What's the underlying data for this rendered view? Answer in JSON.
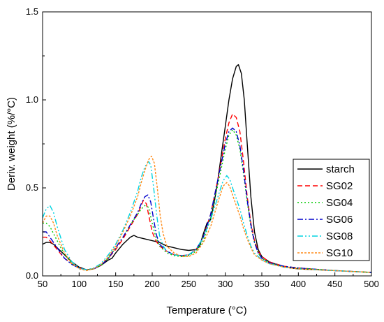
{
  "chart_data": {
    "type": "line",
    "title": "",
    "xlabel": "Temperature (°C)",
    "ylabel": "Deriv. weight (%/°C)",
    "xlim": [
      50,
      500
    ],
    "ylim": [
      0,
      1.5
    ],
    "x_ticks": [
      50,
      100,
      150,
      200,
      250,
      300,
      350,
      400,
      450,
      500
    ],
    "y_ticks": [
      0.0,
      0.5,
      1.0,
      1.5
    ],
    "x_tick_labels": [
      "50",
      "100",
      "150",
      "200",
      "250",
      "300",
      "350",
      "400",
      "450",
      "500"
    ],
    "y_tick_labels": [
      "0.0",
      "0.5",
      "1.0",
      "1.5"
    ],
    "grid": false,
    "legend_position": "right",
    "series": [
      {
        "name": "starch",
        "color": "#000000",
        "dash": "solid",
        "points": [
          [
            50,
            0.18
          ],
          [
            55,
            0.19
          ],
          [
            60,
            0.19
          ],
          [
            65,
            0.18
          ],
          [
            70,
            0.16
          ],
          [
            80,
            0.12
          ],
          [
            90,
            0.08
          ],
          [
            100,
            0.05
          ],
          [
            110,
            0.035
          ],
          [
            120,
            0.04
          ],
          [
            130,
            0.06
          ],
          [
            140,
            0.09
          ],
          [
            145,
            0.1
          ],
          [
            150,
            0.13
          ],
          [
            160,
            0.18
          ],
          [
            170,
            0.22
          ],
          [
            175,
            0.23
          ],
          [
            180,
            0.22
          ],
          [
            190,
            0.21
          ],
          [
            200,
            0.2
          ],
          [
            210,
            0.19
          ],
          [
            220,
            0.17
          ],
          [
            230,
            0.16
          ],
          [
            240,
            0.15
          ],
          [
            250,
            0.145
          ],
          [
            260,
            0.15
          ],
          [
            265,
            0.17
          ],
          [
            270,
            0.24
          ],
          [
            275,
            0.3
          ],
          [
            280,
            0.32
          ],
          [
            285,
            0.42
          ],
          [
            290,
            0.55
          ],
          [
            295,
            0.7
          ],
          [
            300,
            0.85
          ],
          [
            305,
            1.0
          ],
          [
            310,
            1.12
          ],
          [
            315,
            1.19
          ],
          [
            318,
            1.2
          ],
          [
            322,
            1.15
          ],
          [
            326,
            1.0
          ],
          [
            330,
            0.75
          ],
          [
            335,
            0.45
          ],
          [
            340,
            0.25
          ],
          [
            345,
            0.15
          ],
          [
            350,
            0.11
          ],
          [
            360,
            0.08
          ],
          [
            380,
            0.05
          ],
          [
            400,
            0.04
          ],
          [
            450,
            0.03
          ],
          [
            500,
            0.02
          ]
        ]
      },
      {
        "name": "SG02",
        "color": "#ff0000",
        "dash": "dashed",
        "points": [
          [
            50,
            0.22
          ],
          [
            55,
            0.22
          ],
          [
            60,
            0.2
          ],
          [
            70,
            0.15
          ],
          [
            80,
            0.1
          ],
          [
            90,
            0.07
          ],
          [
            100,
            0.045
          ],
          [
            110,
            0.035
          ],
          [
            120,
            0.04
          ],
          [
            130,
            0.06
          ],
          [
            140,
            0.1
          ],
          [
            150,
            0.15
          ],
          [
            160,
            0.21
          ],
          [
            170,
            0.28
          ],
          [
            180,
            0.35
          ],
          [
            185,
            0.4
          ],
          [
            188,
            0.43
          ],
          [
            192,
            0.41
          ],
          [
            196,
            0.33
          ],
          [
            200,
            0.25
          ],
          [
            205,
            0.2
          ],
          [
            210,
            0.17
          ],
          [
            220,
            0.14
          ],
          [
            230,
            0.12
          ],
          [
            240,
            0.115
          ],
          [
            250,
            0.12
          ],
          [
            260,
            0.15
          ],
          [
            270,
            0.22
          ],
          [
            280,
            0.35
          ],
          [
            290,
            0.55
          ],
          [
            300,
            0.78
          ],
          [
            305,
            0.87
          ],
          [
            310,
            0.92
          ],
          [
            315,
            0.9
          ],
          [
            320,
            0.82
          ],
          [
            325,
            0.65
          ],
          [
            330,
            0.45
          ],
          [
            335,
            0.3
          ],
          [
            340,
            0.2
          ],
          [
            345,
            0.14
          ],
          [
            350,
            0.11
          ],
          [
            360,
            0.08
          ],
          [
            380,
            0.055
          ],
          [
            400,
            0.045
          ],
          [
            450,
            0.03
          ],
          [
            500,
            0.02
          ]
        ]
      },
      {
        "name": "SG04",
        "color": "#00cc00",
        "dash": "dotted",
        "points": [
          [
            50,
            0.3
          ],
          [
            55,
            0.3
          ],
          [
            60,
            0.28
          ],
          [
            70,
            0.2
          ],
          [
            80,
            0.12
          ],
          [
            90,
            0.07
          ],
          [
            100,
            0.045
          ],
          [
            110,
            0.035
          ],
          [
            120,
            0.04
          ],
          [
            130,
            0.06
          ],
          [
            140,
            0.1
          ],
          [
            150,
            0.16
          ],
          [
            160,
            0.22
          ],
          [
            170,
            0.29
          ],
          [
            180,
            0.35
          ],
          [
            185,
            0.38
          ],
          [
            190,
            0.4
          ],
          [
            195,
            0.39
          ],
          [
            200,
            0.3
          ],
          [
            205,
            0.22
          ],
          [
            210,
            0.17
          ],
          [
            220,
            0.13
          ],
          [
            230,
            0.115
          ],
          [
            240,
            0.11
          ],
          [
            250,
            0.115
          ],
          [
            260,
            0.14
          ],
          [
            270,
            0.2
          ],
          [
            280,
            0.33
          ],
          [
            290,
            0.52
          ],
          [
            300,
            0.72
          ],
          [
            305,
            0.8
          ],
          [
            310,
            0.83
          ],
          [
            315,
            0.8
          ],
          [
            320,
            0.72
          ],
          [
            325,
            0.58
          ],
          [
            330,
            0.42
          ],
          [
            335,
            0.28
          ],
          [
            340,
            0.19
          ],
          [
            345,
            0.13
          ],
          [
            350,
            0.1
          ],
          [
            360,
            0.075
          ],
          [
            380,
            0.055
          ],
          [
            400,
            0.045
          ],
          [
            450,
            0.03
          ],
          [
            500,
            0.02
          ]
        ]
      },
      {
        "name": "SG06",
        "color": "#0000cc",
        "dash": "dashdot",
        "points": [
          [
            50,
            0.25
          ],
          [
            55,
            0.25
          ],
          [
            60,
            0.22
          ],
          [
            70,
            0.16
          ],
          [
            80,
            0.1
          ],
          [
            90,
            0.065
          ],
          [
            100,
            0.045
          ],
          [
            110,
            0.035
          ],
          [
            120,
            0.04
          ],
          [
            130,
            0.06
          ],
          [
            140,
            0.1
          ],
          [
            150,
            0.16
          ],
          [
            160,
            0.22
          ],
          [
            170,
            0.29
          ],
          [
            180,
            0.36
          ],
          [
            185,
            0.41
          ],
          [
            190,
            0.45
          ],
          [
            194,
            0.46
          ],
          [
            198,
            0.42
          ],
          [
            202,
            0.32
          ],
          [
            206,
            0.23
          ],
          [
            210,
            0.18
          ],
          [
            220,
            0.14
          ],
          [
            230,
            0.12
          ],
          [
            240,
            0.115
          ],
          [
            250,
            0.12
          ],
          [
            260,
            0.15
          ],
          [
            270,
            0.22
          ],
          [
            280,
            0.35
          ],
          [
            290,
            0.55
          ],
          [
            300,
            0.75
          ],
          [
            305,
            0.82
          ],
          [
            310,
            0.84
          ],
          [
            315,
            0.82
          ],
          [
            320,
            0.74
          ],
          [
            325,
            0.6
          ],
          [
            330,
            0.43
          ],
          [
            335,
            0.29
          ],
          [
            340,
            0.19
          ],
          [
            345,
            0.13
          ],
          [
            350,
            0.1
          ],
          [
            360,
            0.075
          ],
          [
            380,
            0.055
          ],
          [
            400,
            0.045
          ],
          [
            450,
            0.03
          ],
          [
            500,
            0.02
          ]
        ]
      },
      {
        "name": "SG08",
        "color": "#00d4e0",
        "dash": "dashdotdot",
        "points": [
          [
            50,
            0.33
          ],
          [
            55,
            0.38
          ],
          [
            60,
            0.4
          ],
          [
            65,
            0.36
          ],
          [
            70,
            0.28
          ],
          [
            80,
            0.15
          ],
          [
            90,
            0.08
          ],
          [
            100,
            0.045
          ],
          [
            110,
            0.035
          ],
          [
            120,
            0.045
          ],
          [
            130,
            0.07
          ],
          [
            140,
            0.12
          ],
          [
            150,
            0.18
          ],
          [
            160,
            0.26
          ],
          [
            170,
            0.36
          ],
          [
            180,
            0.48
          ],
          [
            185,
            0.56
          ],
          [
            190,
            0.62
          ],
          [
            195,
            0.65
          ],
          [
            198,
            0.63
          ],
          [
            202,
            0.5
          ],
          [
            206,
            0.35
          ],
          [
            210,
            0.23
          ],
          [
            215,
            0.17
          ],
          [
            220,
            0.14
          ],
          [
            230,
            0.12
          ],
          [
            240,
            0.115
          ],
          [
            250,
            0.12
          ],
          [
            260,
            0.15
          ],
          [
            270,
            0.22
          ],
          [
            280,
            0.32
          ],
          [
            290,
            0.45
          ],
          [
            297,
            0.54
          ],
          [
            302,
            0.57
          ],
          [
            306,
            0.55
          ],
          [
            310,
            0.5
          ],
          [
            315,
            0.44
          ],
          [
            320,
            0.38
          ],
          [
            325,
            0.3
          ],
          [
            330,
            0.23
          ],
          [
            335,
            0.17
          ],
          [
            340,
            0.13
          ],
          [
            350,
            0.09
          ],
          [
            360,
            0.07
          ],
          [
            380,
            0.05
          ],
          [
            400,
            0.04
          ],
          [
            450,
            0.03
          ],
          [
            500,
            0.02
          ]
        ]
      },
      {
        "name": "SG10",
        "color": "#ff8c1a",
        "dash": "shortdot",
        "points": [
          [
            50,
            0.3
          ],
          [
            55,
            0.34
          ],
          [
            60,
            0.34
          ],
          [
            65,
            0.3
          ],
          [
            70,
            0.23
          ],
          [
            80,
            0.13
          ],
          [
            90,
            0.07
          ],
          [
            100,
            0.04
          ],
          [
            110,
            0.03
          ],
          [
            120,
            0.04
          ],
          [
            130,
            0.065
          ],
          [
            140,
            0.11
          ],
          [
            150,
            0.17
          ],
          [
            160,
            0.25
          ],
          [
            170,
            0.34
          ],
          [
            180,
            0.45
          ],
          [
            185,
            0.53
          ],
          [
            190,
            0.6
          ],
          [
            195,
            0.66
          ],
          [
            199,
            0.68
          ],
          [
            203,
            0.64
          ],
          [
            207,
            0.5
          ],
          [
            211,
            0.34
          ],
          [
            215,
            0.24
          ],
          [
            220,
            0.17
          ],
          [
            230,
            0.13
          ],
          [
            240,
            0.11
          ],
          [
            250,
            0.11
          ],
          [
            260,
            0.13
          ],
          [
            270,
            0.19
          ],
          [
            280,
            0.28
          ],
          [
            290,
            0.42
          ],
          [
            297,
            0.51
          ],
          [
            302,
            0.53
          ],
          [
            306,
            0.51
          ],
          [
            310,
            0.46
          ],
          [
            315,
            0.4
          ],
          [
            320,
            0.34
          ],
          [
            325,
            0.27
          ],
          [
            330,
            0.21
          ],
          [
            335,
            0.16
          ],
          [
            340,
            0.12
          ],
          [
            350,
            0.09
          ],
          [
            360,
            0.07
          ],
          [
            380,
            0.05
          ],
          [
            400,
            0.04
          ],
          [
            450,
            0.03
          ],
          [
            500,
            0.02
          ]
        ]
      }
    ]
  }
}
